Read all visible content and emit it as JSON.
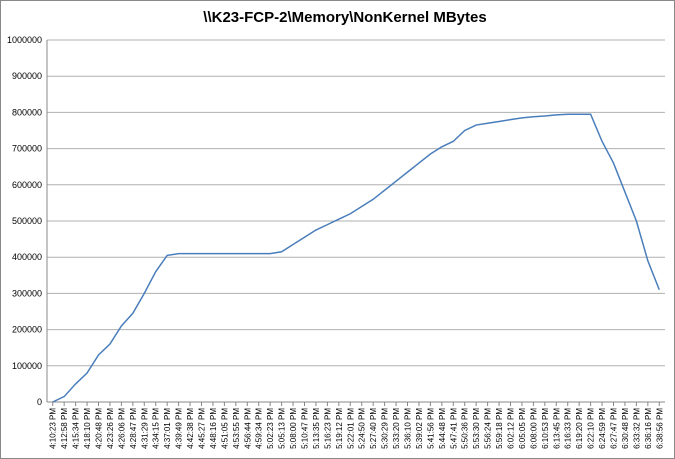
{
  "chart_data": {
    "type": "line",
    "title": "\\\\K23-FCP-2\\Memory\\NonKernel MBytes",
    "categories": [
      "4:10:23 PM",
      "4:12:58 PM",
      "4:15:34 PM",
      "4:18:10 PM",
      "4:20:48 PM",
      "4:23:26 PM",
      "4:26:06 PM",
      "4:28:47 PM",
      "4:31:29 PM",
      "4:34:15 PM",
      "4:37:01 PM",
      "4:39:49 PM",
      "4:42:38 PM",
      "4:45:27 PM",
      "4:48:16 PM",
      "4:51:05 PM",
      "4:53:55 PM",
      "4:56:44 PM",
      "4:59:34 PM",
      "5:02:23 PM",
      "5:05:13 PM",
      "5:08:00 PM",
      "5:10:47 PM",
      "5:13:35 PM",
      "5:16:23 PM",
      "5:19:12 PM",
      "5:22:01 PM",
      "5:24:50 PM",
      "5:27:40 PM",
      "5:30:29 PM",
      "5:33:20 PM",
      "5:36:10 PM",
      "5:39:02 PM",
      "5:41:56 PM",
      "5:44:48 PM",
      "5:47:41 PM",
      "5:50:36 PM",
      "5:53:30 PM",
      "5:56:24 PM",
      "5:59:18 PM",
      "6:02:12 PM",
      "6:05:05 PM",
      "6:08:00 PM",
      "6:10:53 PM",
      "6:13:45 PM",
      "6:16:33 PM",
      "6:19:20 PM",
      "6:22:10 PM",
      "6:24:59 PM",
      "6:27:47 PM",
      "6:30:48 PM",
      "6:33:32 PM",
      "6:36:16 PM",
      "6:38:56 PM"
    ],
    "values": [
      0,
      15000,
      50000,
      80000,
      130000,
      160000,
      210000,
      245000,
      300000,
      360000,
      405000,
      410000,
      410000,
      410000,
      410000,
      410000,
      410000,
      410000,
      410000,
      410000,
      415000,
      435000,
      455000,
      475000,
      490000,
      505000,
      520000,
      540000,
      560000,
      585000,
      610000,
      635000,
      660000,
      685000,
      705000,
      720000,
      750000,
      765000,
      770000,
      775000,
      780000,
      785000,
      788000,
      790000,
      793000,
      795000,
      795000,
      795000,
      720000,
      660000,
      580000,
      500000,
      390000,
      310000
    ],
    "color": "#4a7ebb",
    "ylim": [
      0,
      1000000
    ],
    "yticks": [
      0,
      100000,
      200000,
      300000,
      400000,
      500000,
      600000,
      700000,
      800000,
      900000,
      1000000
    ],
    "grid": true
  }
}
